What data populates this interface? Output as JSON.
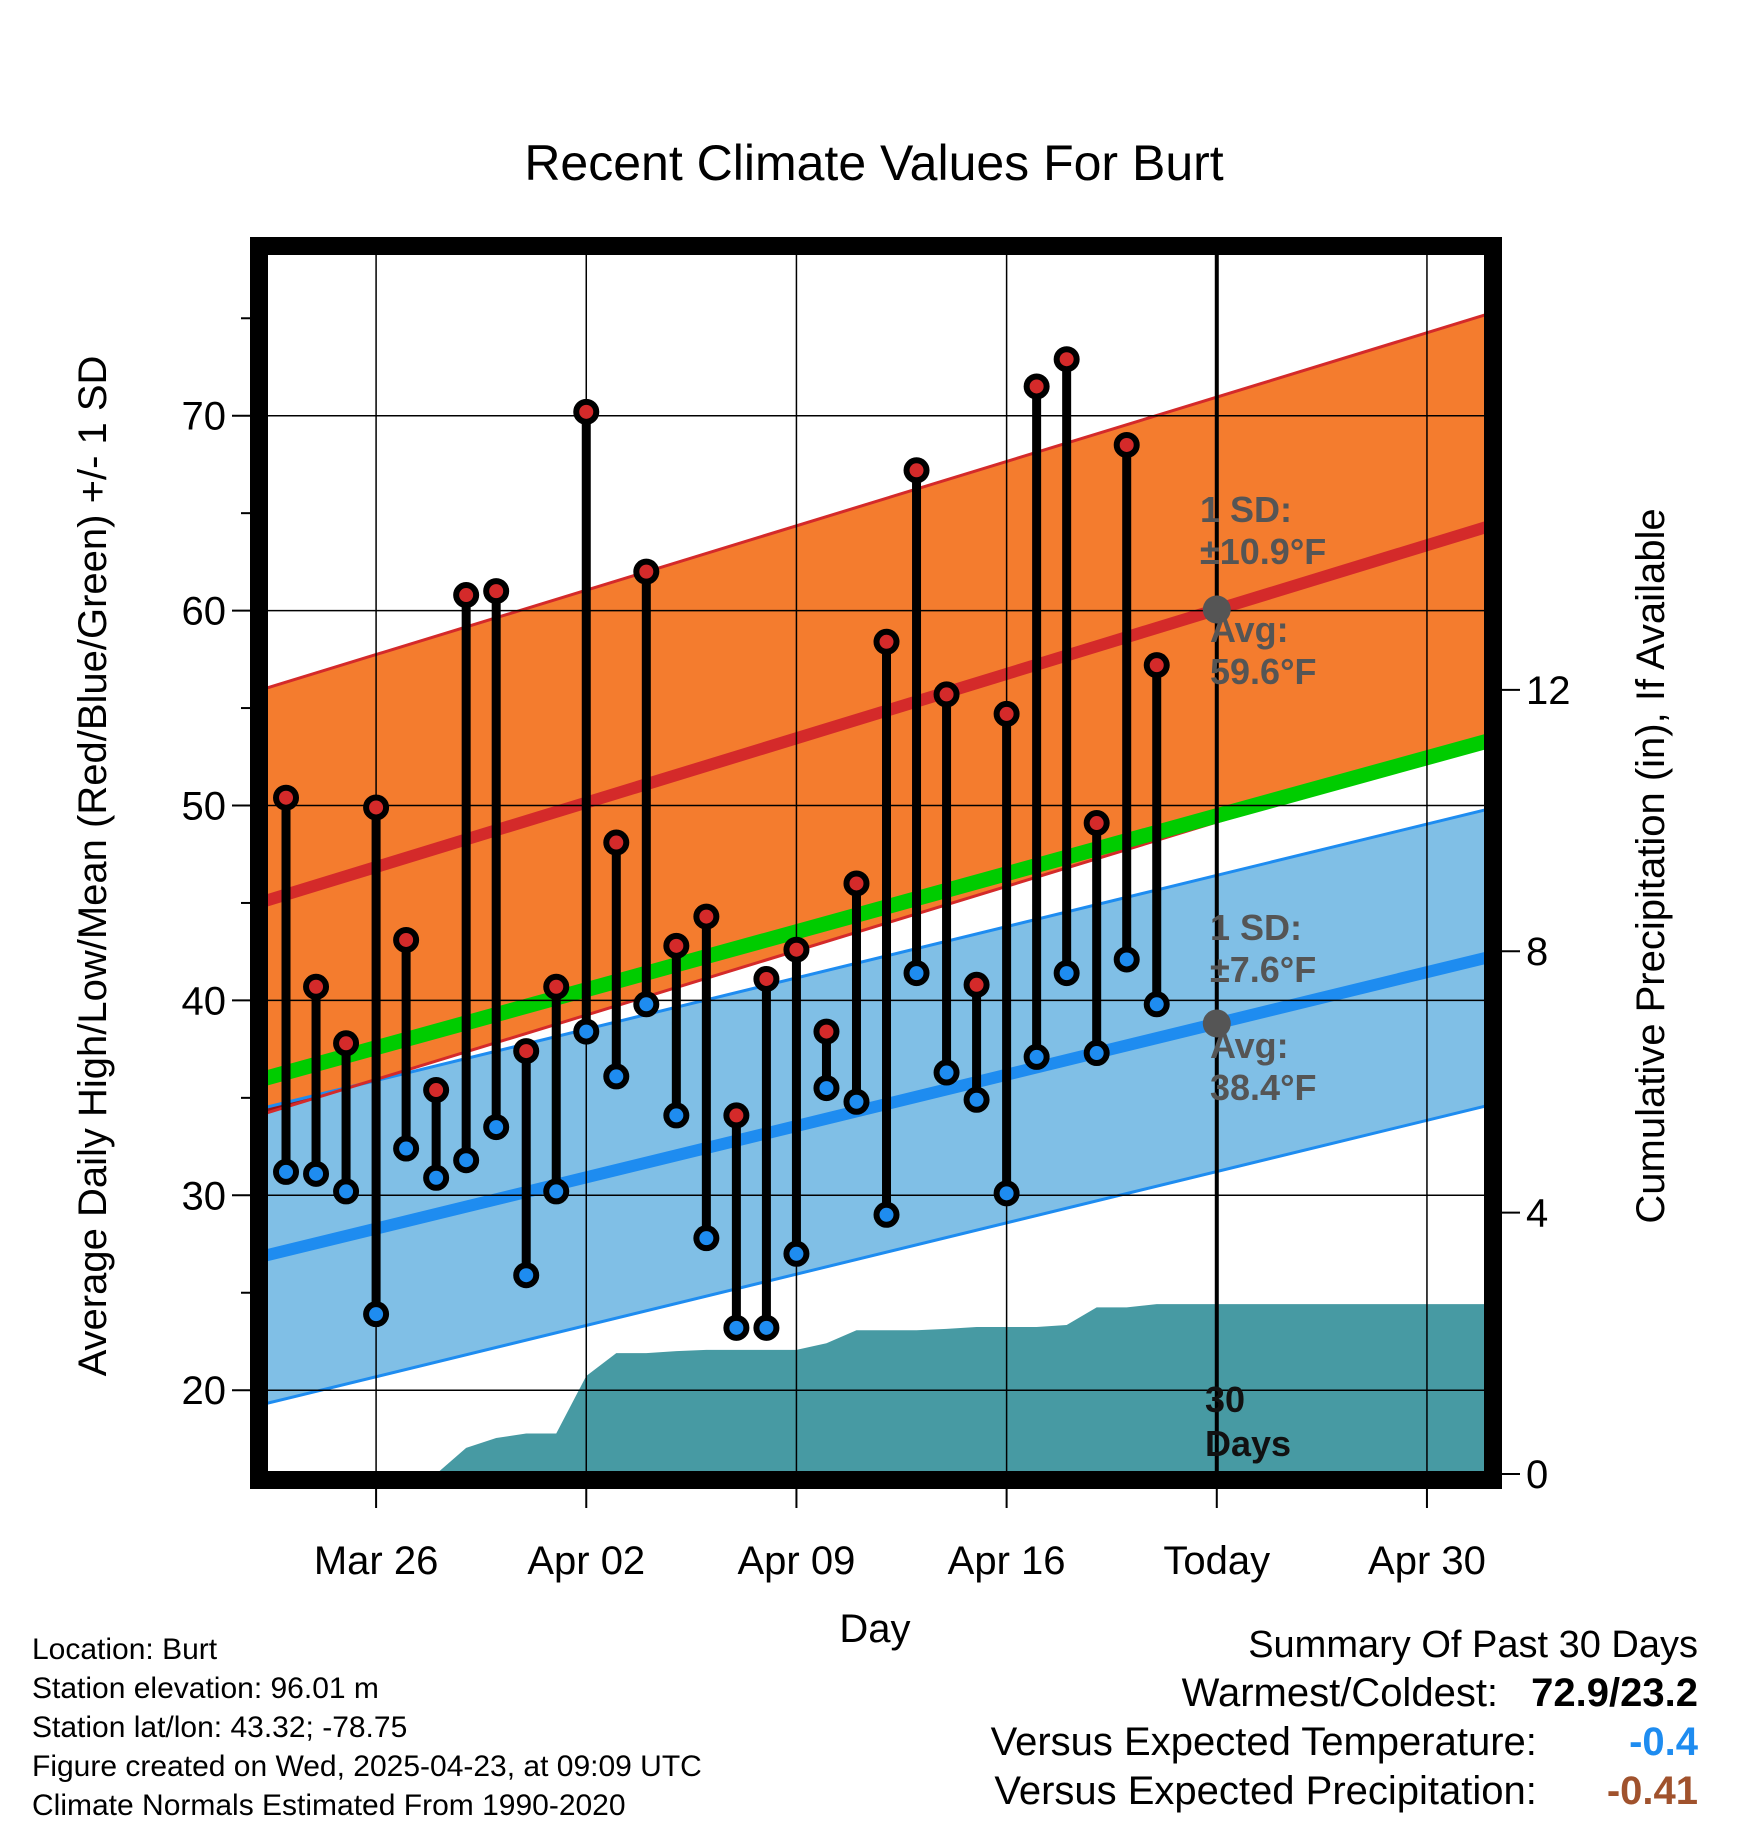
{
  "colors": {
    "high_band": "#f47c2e",
    "high_line": "#d42a2a",
    "low_band": "#80bfe6",
    "low_line": "#1e8cf0",
    "mean_line": "#00cc00",
    "overlap": "#9a1515",
    "precip": "#479aa3",
    "high_marker": "#d42a2a",
    "low_marker": "#1e8cf0",
    "annot": "#555555",
    "neg_temp": "#1e8cf0",
    "neg_precip": "#a0522d"
  },
  "chart_data": {
    "type": "line",
    "title": "Recent Climate Values For Burt",
    "xlabel": "Day",
    "ylabel": "Average Daily High/Low/Mean (Red/Blue/Green) +/- 1 SD",
    "ylabel_right": "Cumulative Precipitation (in), If Available",
    "xlim": [
      22.3,
      63
    ],
    "ylim": [
      15.7,
      78.4
    ],
    "y2lim": [
      0,
      18.7
    ],
    "x_ticks": [
      {
        "x": 26,
        "label": "Mar 26"
      },
      {
        "x": 33,
        "label": "Apr 02"
      },
      {
        "x": 40,
        "label": "Apr 09"
      },
      {
        "x": 47,
        "label": "Apr 16"
      },
      {
        "x": 54,
        "label": "Today"
      },
      {
        "x": 61,
        "label": "Apr 30"
      }
    ],
    "y_ticks": [
      20,
      30,
      40,
      50,
      60,
      70
    ],
    "y2_ticks": [
      0,
      4,
      8,
      12
    ],
    "today_x": 54,
    "normals": {
      "high_mean": [
        45.1,
        64.3
      ],
      "high_sd": 10.9,
      "low_mean": [
        26.9,
        42.2
      ],
      "low_sd": 7.6,
      "mean_mean": [
        36.0,
        53.3
      ]
    },
    "series": [
      {
        "name": "Daily High",
        "x": [
          23,
          24,
          25,
          26,
          27,
          28,
          29,
          30,
          31,
          32,
          33,
          34,
          35,
          36,
          37,
          38,
          39,
          40,
          41,
          42,
          43,
          44,
          45,
          46,
          47,
          48,
          49,
          50,
          51,
          52
        ],
        "values": [
          50.4,
          40.7,
          37.8,
          49.9,
          43.1,
          35.4,
          60.8,
          61.0,
          37.4,
          40.7,
          70.2,
          48.1,
          62.0,
          42.8,
          44.3,
          34.1,
          41.1,
          42.6,
          38.4,
          46.0,
          58.4,
          67.2,
          55.7,
          40.8,
          54.7,
          71.5,
          72.9,
          49.1,
          68.5,
          57.2
        ]
      },
      {
        "name": "Daily Low",
        "x": [
          23,
          24,
          25,
          26,
          27,
          28,
          29,
          30,
          31,
          32,
          33,
          34,
          35,
          36,
          37,
          38,
          39,
          40,
          41,
          42,
          43,
          44,
          45,
          46,
          47,
          48,
          49,
          50,
          51,
          52
        ],
        "values": [
          31.2,
          31.1,
          30.2,
          23.9,
          32.4,
          30.9,
          31.8,
          33.5,
          25.9,
          30.2,
          38.4,
          36.1,
          39.8,
          34.1,
          27.8,
          23.2,
          23.2,
          27.0,
          35.5,
          34.8,
          29.0,
          41.4,
          36.3,
          34.9,
          30.1,
          37.1,
          41.4,
          37.3,
          42.1,
          39.8
        ]
      },
      {
        "name": "Cumulative Precipitation",
        "x": [
          22.3,
          23,
          24,
          25,
          26,
          27,
          28,
          29,
          30,
          31,
          32,
          33,
          34,
          35,
          36,
          37,
          38,
          39,
          40,
          41,
          42,
          43,
          44,
          45,
          46,
          47,
          48,
          49,
          50,
          51,
          52,
          53,
          54,
          63
        ],
        "values": [
          0,
          0,
          0,
          0,
          0,
          0,
          0,
          0.4,
          0.55,
          0.62,
          0.62,
          1.5,
          1.85,
          1.85,
          1.88,
          1.9,
          1.9,
          1.9,
          1.9,
          2.0,
          2.2,
          2.2,
          2.2,
          2.22,
          2.25,
          2.25,
          2.25,
          2.28,
          2.55,
          2.55,
          2.6,
          2.6,
          2.6,
          2.6
        ]
      }
    ],
    "annotations": {
      "high_sd_label": "1 SD:",
      "high_sd_value": "±10.9°F",
      "high_avg_label": "Avg:",
      "high_avg_value": "59.6°F",
      "low_sd_label": "1 SD:",
      "low_sd_value": "±7.6°F",
      "low_avg_label": "Avg:",
      "low_avg_value": "38.4°F",
      "days_number": "30",
      "days_word": "Days"
    }
  },
  "info": {
    "location": "Location: Burt",
    "elevation": "Station elevation: 96.01 m",
    "latlon": "Station lat/lon: 43.32; -78.75",
    "created": "Figure created on Wed, 2025-04-23, at 09:09 UTC",
    "normals": "Climate Normals Estimated From 1990-2020"
  },
  "summary": {
    "title": "Summary Of Past 30 Days",
    "warmest_label": "Warmest/Coldest:",
    "warmest_value": "72.9/23.2",
    "temp_label": "Versus Expected Temperature:",
    "temp_value": "-0.4",
    "precip_label": "Versus Expected Precipitation:",
    "precip_value": "-0.41"
  }
}
